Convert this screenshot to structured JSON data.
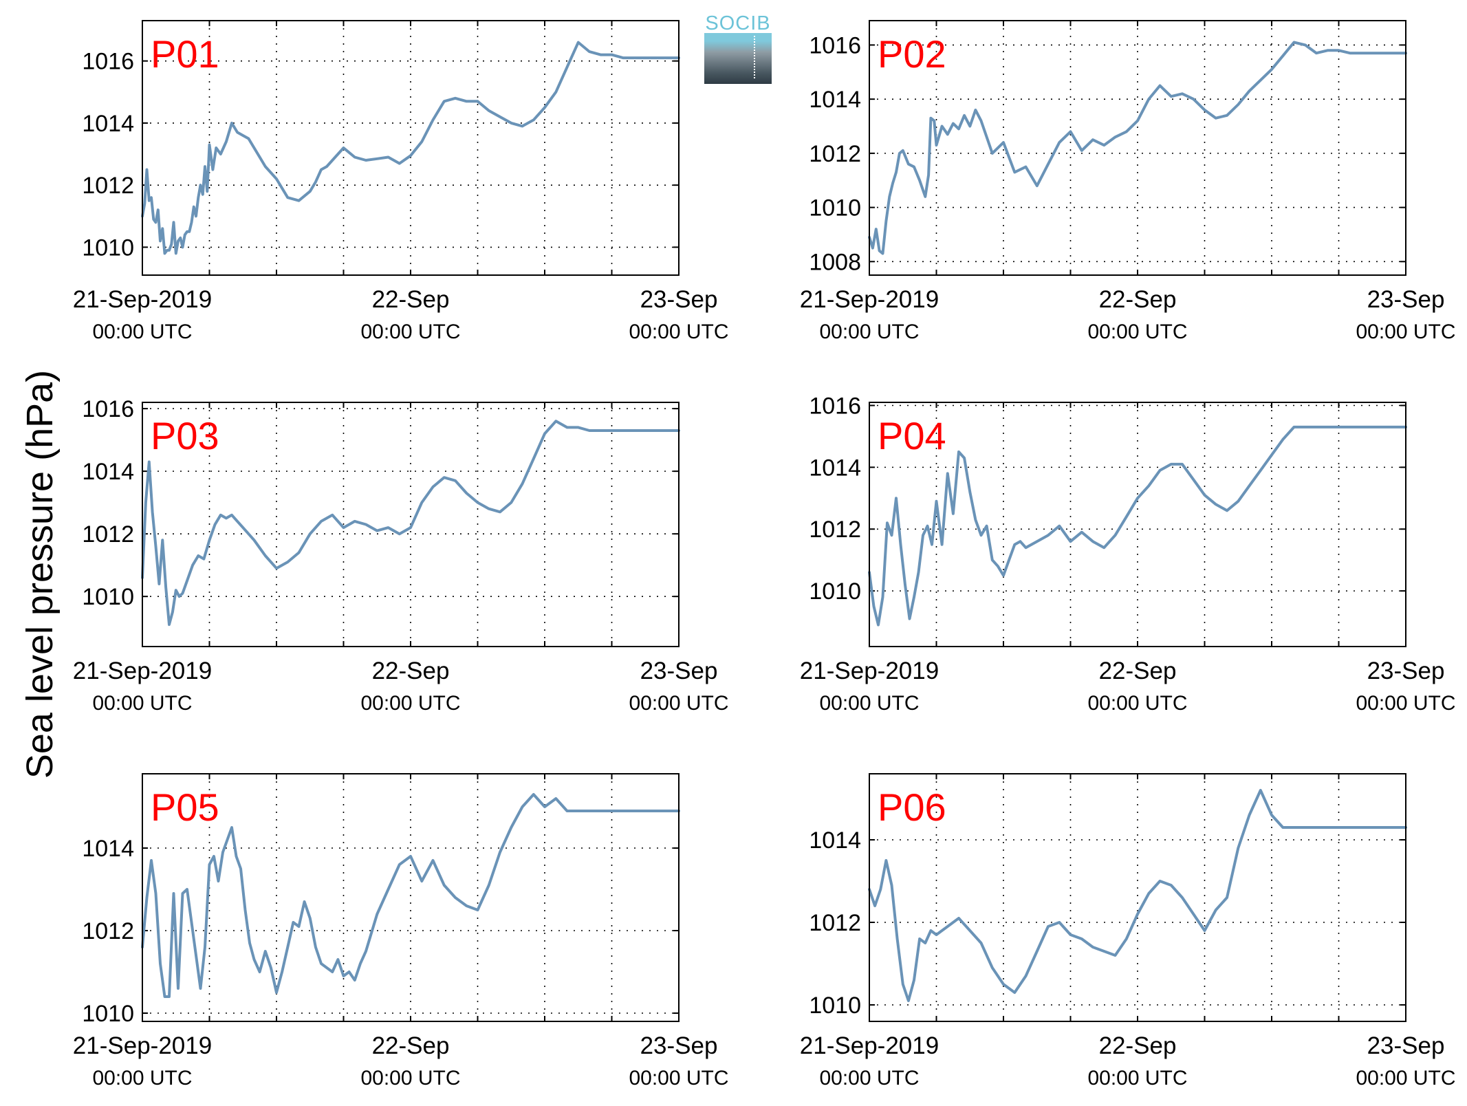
{
  "figure": {
    "ylabel": "Sea level pressure (hPa)",
    "logo_text": "SOCIB",
    "line_color": "#6a93b7",
    "station_label_color": "#ff0000"
  },
  "chart_data": [
    {
      "type": "line",
      "station": "P01",
      "ylim": [
        1009.1,
        1017.3
      ],
      "yticks": [
        1010,
        1012,
        1014,
        1016
      ],
      "xlim": [
        0,
        48
      ],
      "xtick_labels": [
        [
          "21-Sep-2019",
          "00:00 UTC"
        ],
        [
          "22-Sep",
          "00:00 UTC"
        ],
        [
          "23-Sep",
          "00:00 UTC"
        ]
      ],
      "grid": true,
      "x": [
        0,
        0.2,
        0.4,
        0.6,
        0.8,
        1,
        1.2,
        1.4,
        1.6,
        1.8,
        2,
        2.2,
        2.4,
        2.6,
        2.8,
        3,
        3.2,
        3.4,
        3.6,
        3.8,
        4,
        4.2,
        4.4,
        4.6,
        4.8,
        5,
        5.2,
        5.4,
        5.6,
        5.8,
        6,
        6.3,
        6.6,
        7,
        7.5,
        8,
        8.5,
        9,
        9.5,
        10,
        11,
        12,
        13,
        14,
        15,
        15.5,
        16,
        16.5,
        17,
        18,
        19,
        20,
        21,
        22,
        23,
        24,
        25,
        26,
        27,
        28,
        29,
        30,
        31,
        32,
        33,
        34,
        35,
        36,
        37,
        38,
        39,
        40,
        41,
        42,
        43,
        44,
        45,
        46,
        47,
        48
      ],
      "values": [
        1011.0,
        1011.4,
        1012.5,
        1011.5,
        1011.6,
        1010.9,
        1010.8,
        1011.2,
        1010.2,
        1010.6,
        1009.8,
        1009.9,
        1009.9,
        1010.1,
        1010.8,
        1009.8,
        1010.2,
        1010.3,
        1010.0,
        1010.4,
        1010.5,
        1010.5,
        1010.8,
        1011.3,
        1011.0,
        1011.6,
        1012.0,
        1011.7,
        1012.6,
        1011.8,
        1013.3,
        1012.5,
        1013.2,
        1013.0,
        1013.4,
        1014.0,
        1013.7,
        1013.6,
        1013.5,
        1013.2,
        1012.6,
        1012.2,
        1011.6,
        1011.5,
        1011.8,
        1012.1,
        1012.5,
        1012.6,
        1012.8,
        1013.2,
        1012.9,
        1012.8,
        1012.85,
        1012.9,
        1012.7,
        1012.95,
        1013.4,
        1014.1,
        1014.7,
        1014.8,
        1014.7,
        1014.7,
        1014.4,
        1014.2,
        1014.0,
        1013.9,
        1014.1,
        1014.5,
        1015.0,
        1015.8,
        1016.6,
        1016.3,
        1016.2,
        1016.2,
        1016.1,
        1016.1,
        1016.1,
        1016.1,
        1016.1,
        1016.1
      ],
      "x_trim": 48
    },
    {
      "type": "line",
      "station": "P02",
      "ylim": [
        1007.5,
        1016.9
      ],
      "yticks": [
        1008,
        1010,
        1012,
        1014,
        1016
      ],
      "xlim": [
        0,
        48
      ],
      "xtick_labels": [
        [
          "21-Sep-2019",
          "00:00 UTC"
        ],
        [
          "22-Sep",
          "00:00 UTC"
        ],
        [
          "23-Sep",
          "00:00 UTC"
        ]
      ],
      "grid": true,
      "x": [
        0,
        0.3,
        0.6,
        0.9,
        1.2,
        1.5,
        1.8,
        2.1,
        2.4,
        2.7,
        3,
        3.5,
        4,
        4.5,
        5,
        5.3,
        5.5,
        5.8,
        6,
        6.5,
        7,
        7.5,
        8,
        8.5,
        9,
        9.5,
        10,
        11,
        12,
        13,
        14,
        15,
        16,
        17,
        18,
        19,
        20,
        21,
        22,
        23,
        24,
        25,
        26,
        27,
        28,
        29,
        30,
        31,
        32,
        33,
        34,
        35,
        36,
        37,
        38,
        39,
        40,
        41,
        42,
        43,
        44,
        45,
        46,
        47,
        48
      ],
      "values": [
        1008.9,
        1008.5,
        1009.2,
        1008.4,
        1008.3,
        1009.5,
        1010.4,
        1010.9,
        1011.3,
        1012.0,
        1012.1,
        1011.6,
        1011.5,
        1011.0,
        1010.4,
        1011.2,
        1013.3,
        1013.2,
        1012.3,
        1013.0,
        1012.7,
        1013.1,
        1012.9,
        1013.4,
        1013.0,
        1013.6,
        1013.2,
        1012.0,
        1012.4,
        1011.3,
        1011.5,
        1010.8,
        1011.6,
        1012.4,
        1012.8,
        1012.1,
        1012.5,
        1012.3,
        1012.6,
        1012.8,
        1013.2,
        1014.0,
        1014.5,
        1014.1,
        1014.2,
        1014.0,
        1013.6,
        1013.3,
        1013.4,
        1013.8,
        1014.3,
        1014.7,
        1015.1,
        1015.6,
        1016.1,
        1016.0,
        1015.7,
        1015.8,
        1015.8,
        1015.7,
        1015.7,
        1015.7,
        1015.7,
        1015.7,
        1015.7
      ],
      "x_trim": 48
    },
    {
      "type": "line",
      "station": "P03",
      "ylim": [
        1008.4,
        1016.2
      ],
      "yticks": [
        1010,
        1012,
        1014,
        1016
      ],
      "xlim": [
        0,
        48
      ],
      "xtick_labels": [
        [
          "21-Sep-2019",
          "00:00 UTC"
        ],
        [
          "22-Sep",
          "00:00 UTC"
        ],
        [
          "23-Sep",
          "00:00 UTC"
        ]
      ],
      "grid": true,
      "x": [
        0,
        0.3,
        0.6,
        0.9,
        1.2,
        1.5,
        1.8,
        2.1,
        2.4,
        2.7,
        3,
        3.3,
        3.6,
        4,
        4.5,
        5,
        5.5,
        6,
        6.5,
        7,
        7.5,
        8,
        8.5,
        9,
        10,
        11,
        12,
        13,
        14,
        15,
        16,
        17,
        18,
        19,
        20,
        21,
        22,
        23,
        24,
        25,
        26,
        27,
        28,
        29,
        30,
        31,
        32,
        33,
        34,
        35,
        36,
        37,
        38,
        39,
        40,
        41,
        42,
        43,
        44,
        45,
        46,
        47,
        48
      ],
      "values": [
        1010.6,
        1013.0,
        1014.3,
        1012.7,
        1011.6,
        1010.4,
        1011.8,
        1010.3,
        1009.1,
        1009.5,
        1010.2,
        1010.0,
        1010.1,
        1010.5,
        1011.0,
        1011.3,
        1011.2,
        1011.8,
        1012.3,
        1012.6,
        1012.5,
        1012.6,
        1012.4,
        1012.2,
        1011.8,
        1011.3,
        1010.9,
        1011.1,
        1011.4,
        1012.0,
        1012.4,
        1012.6,
        1012.2,
        1012.4,
        1012.3,
        1012.1,
        1012.2,
        1012.0,
        1012.2,
        1013.0,
        1013.5,
        1013.8,
        1013.7,
        1013.3,
        1013.0,
        1012.8,
        1012.7,
        1013.0,
        1013.6,
        1014.4,
        1015.2,
        1015.6,
        1015.4,
        1015.4,
        1015.3,
        1015.3,
        1015.3,
        1015.3,
        1015.3,
        1015.3,
        1015.3,
        1015.3,
        1015.3
      ],
      "x_trim": 48
    },
    {
      "type": "line",
      "station": "P04",
      "ylim": [
        1008.2,
        1016.1
      ],
      "yticks": [
        1010,
        1012,
        1014,
        1016
      ],
      "xlim": [
        0,
        48
      ],
      "xtick_labels": [
        [
          "21-Sep-2019",
          "00:00 UTC"
        ],
        [
          "22-Sep",
          "00:00 UTC"
        ],
        [
          "23-Sep",
          "00:00 UTC"
        ]
      ],
      "grid": true,
      "x": [
        0,
        0.4,
        0.8,
        1.2,
        1.6,
        2,
        2.4,
        2.8,
        3.2,
        3.6,
        4,
        4.4,
        4.8,
        5.2,
        5.6,
        6,
        6.5,
        7,
        7.5,
        8,
        8.5,
        9,
        9.5,
        10,
        10.5,
        11,
        11.5,
        12,
        12.5,
        13,
        13.5,
        14,
        15,
        16,
        17,
        18,
        19,
        20,
        21,
        22,
        23,
        24,
        25,
        26,
        27,
        28,
        29,
        30,
        31,
        32,
        33,
        34,
        35,
        36,
        37,
        38,
        39,
        40,
        41,
        42,
        43,
        44,
        45,
        46,
        47,
        48
      ],
      "values": [
        1010.6,
        1009.5,
        1008.9,
        1009.8,
        1012.2,
        1011.8,
        1013.0,
        1011.5,
        1010.2,
        1009.1,
        1009.8,
        1010.6,
        1011.8,
        1012.1,
        1011.5,
        1012.9,
        1011.5,
        1013.8,
        1012.5,
        1014.5,
        1014.3,
        1013.2,
        1012.3,
        1011.8,
        1012.1,
        1011.0,
        1010.8,
        1010.5,
        1011.0,
        1011.5,
        1011.6,
        1011.4,
        1011.6,
        1011.8,
        1012.1,
        1011.6,
        1011.9,
        1011.6,
        1011.4,
        1011.8,
        1012.4,
        1013.0,
        1013.4,
        1013.9,
        1014.1,
        1014.1,
        1013.6,
        1013.1,
        1012.8,
        1012.6,
        1012.9,
        1013.4,
        1013.9,
        1014.4,
        1014.9,
        1015.3,
        1015.3,
        1015.3,
        1015.3,
        1015.3,
        1015.3,
        1015.3,
        1015.3,
        1015.3,
        1015.3,
        1015.3
      ],
      "x_trim": 48
    },
    {
      "type": "line",
      "station": "P05",
      "ylim": [
        1009.8,
        1015.8
      ],
      "yticks": [
        1010,
        1012,
        1014
      ],
      "xlim": [
        0,
        48
      ],
      "xtick_labels": [
        [
          "21-Sep-2019",
          "00:00 UTC"
        ],
        [
          "22-Sep",
          "00:00 UTC"
        ],
        [
          "23-Sep",
          "00:00 UTC"
        ]
      ],
      "grid": true,
      "x": [
        0,
        0.4,
        0.8,
        1.2,
        1.6,
        2,
        2.4,
        2.8,
        3.2,
        3.6,
        4,
        4.4,
        4.8,
        5.2,
        5.6,
        6,
        6.4,
        6.8,
        7.2,
        7.6,
        8,
        8.4,
        8.8,
        9.2,
        9.6,
        10,
        10.5,
        11,
        11.5,
        12,
        12.5,
        13,
        13.5,
        14,
        14.5,
        15,
        15.5,
        16,
        16.5,
        17,
        17.5,
        18,
        18.5,
        19,
        19.5,
        20,
        21,
        22,
        23,
        24,
        25,
        26,
        27,
        28,
        29,
        30,
        31,
        32,
        33,
        34,
        35,
        36,
        37,
        38,
        39,
        40,
        41,
        42,
        43,
        44,
        45,
        46,
        47,
        48
      ],
      "values": [
        1011.6,
        1012.8,
        1013.7,
        1012.9,
        1011.2,
        1010.4,
        1010.4,
        1012.9,
        1010.6,
        1012.9,
        1013.0,
        1012.2,
        1011.4,
        1010.6,
        1011.6,
        1013.6,
        1013.8,
        1013.2,
        1013.9,
        1014.2,
        1014.5,
        1013.8,
        1013.5,
        1012.5,
        1011.7,
        1011.3,
        1011.0,
        1011.5,
        1011.1,
        1010.5,
        1011.0,
        1011.6,
        1012.2,
        1012.1,
        1012.7,
        1012.3,
        1011.6,
        1011.2,
        1011.1,
        1011.0,
        1011.3,
        1010.9,
        1011.0,
        1010.8,
        1011.2,
        1011.5,
        1012.4,
        1013.0,
        1013.6,
        1013.8,
        1013.2,
        1013.7,
        1013.1,
        1012.8,
        1012.6,
        1012.5,
        1013.1,
        1013.9,
        1014.5,
        1015.0,
        1015.3,
        1015.0,
        1015.2,
        1014.9,
        1014.9,
        1014.9,
        1014.9,
        1014.9,
        1014.9,
        1014.9,
        1014.9,
        1014.9,
        1014.9,
        1014.9
      ],
      "x_trim": 48
    },
    {
      "type": "line",
      "station": "P06",
      "ylim": [
        1009.6,
        1015.6
      ],
      "yticks": [
        1010,
        1012,
        1014
      ],
      "xlim": [
        0,
        48
      ],
      "xtick_labels": [
        [
          "21-Sep-2019",
          "00:00 UTC"
        ],
        [
          "22-Sep",
          "00:00 UTC"
        ],
        [
          "23-Sep",
          "00:00 UTC"
        ]
      ],
      "grid": true,
      "x": [
        0,
        0.5,
        1,
        1.5,
        2,
        2.5,
        3,
        3.5,
        4,
        4.5,
        5,
        5.5,
        6,
        6.5,
        7,
        8,
        9,
        10,
        11,
        12,
        13,
        14,
        15,
        16,
        17,
        18,
        19,
        20,
        21,
        22,
        23,
        24,
        25,
        26,
        27,
        28,
        29,
        30,
        31,
        32,
        33,
        34,
        35,
        36,
        37,
        38,
        39,
        40,
        41,
        42,
        43,
        44,
        45,
        46,
        47,
        48
      ],
      "values": [
        1012.8,
        1012.4,
        1012.8,
        1013.5,
        1012.9,
        1011.6,
        1010.5,
        1010.1,
        1010.6,
        1011.6,
        1011.5,
        1011.8,
        1011.7,
        1011.8,
        1011.9,
        1012.1,
        1011.8,
        1011.5,
        1010.9,
        1010.5,
        1010.3,
        1010.7,
        1011.3,
        1011.9,
        1012.0,
        1011.7,
        1011.6,
        1011.4,
        1011.3,
        1011.2,
        1011.6,
        1012.2,
        1012.7,
        1013.0,
        1012.9,
        1012.6,
        1012.2,
        1011.8,
        1012.3,
        1012.6,
        1013.8,
        1014.6,
        1015.2,
        1014.6,
        1014.3,
        1014.3,
        1014.3,
        1014.3,
        1014.3,
        1014.3,
        1014.3,
        1014.3,
        1014.3,
        1014.3,
        1014.3,
        1014.3
      ],
      "x_trim": 48
    }
  ]
}
